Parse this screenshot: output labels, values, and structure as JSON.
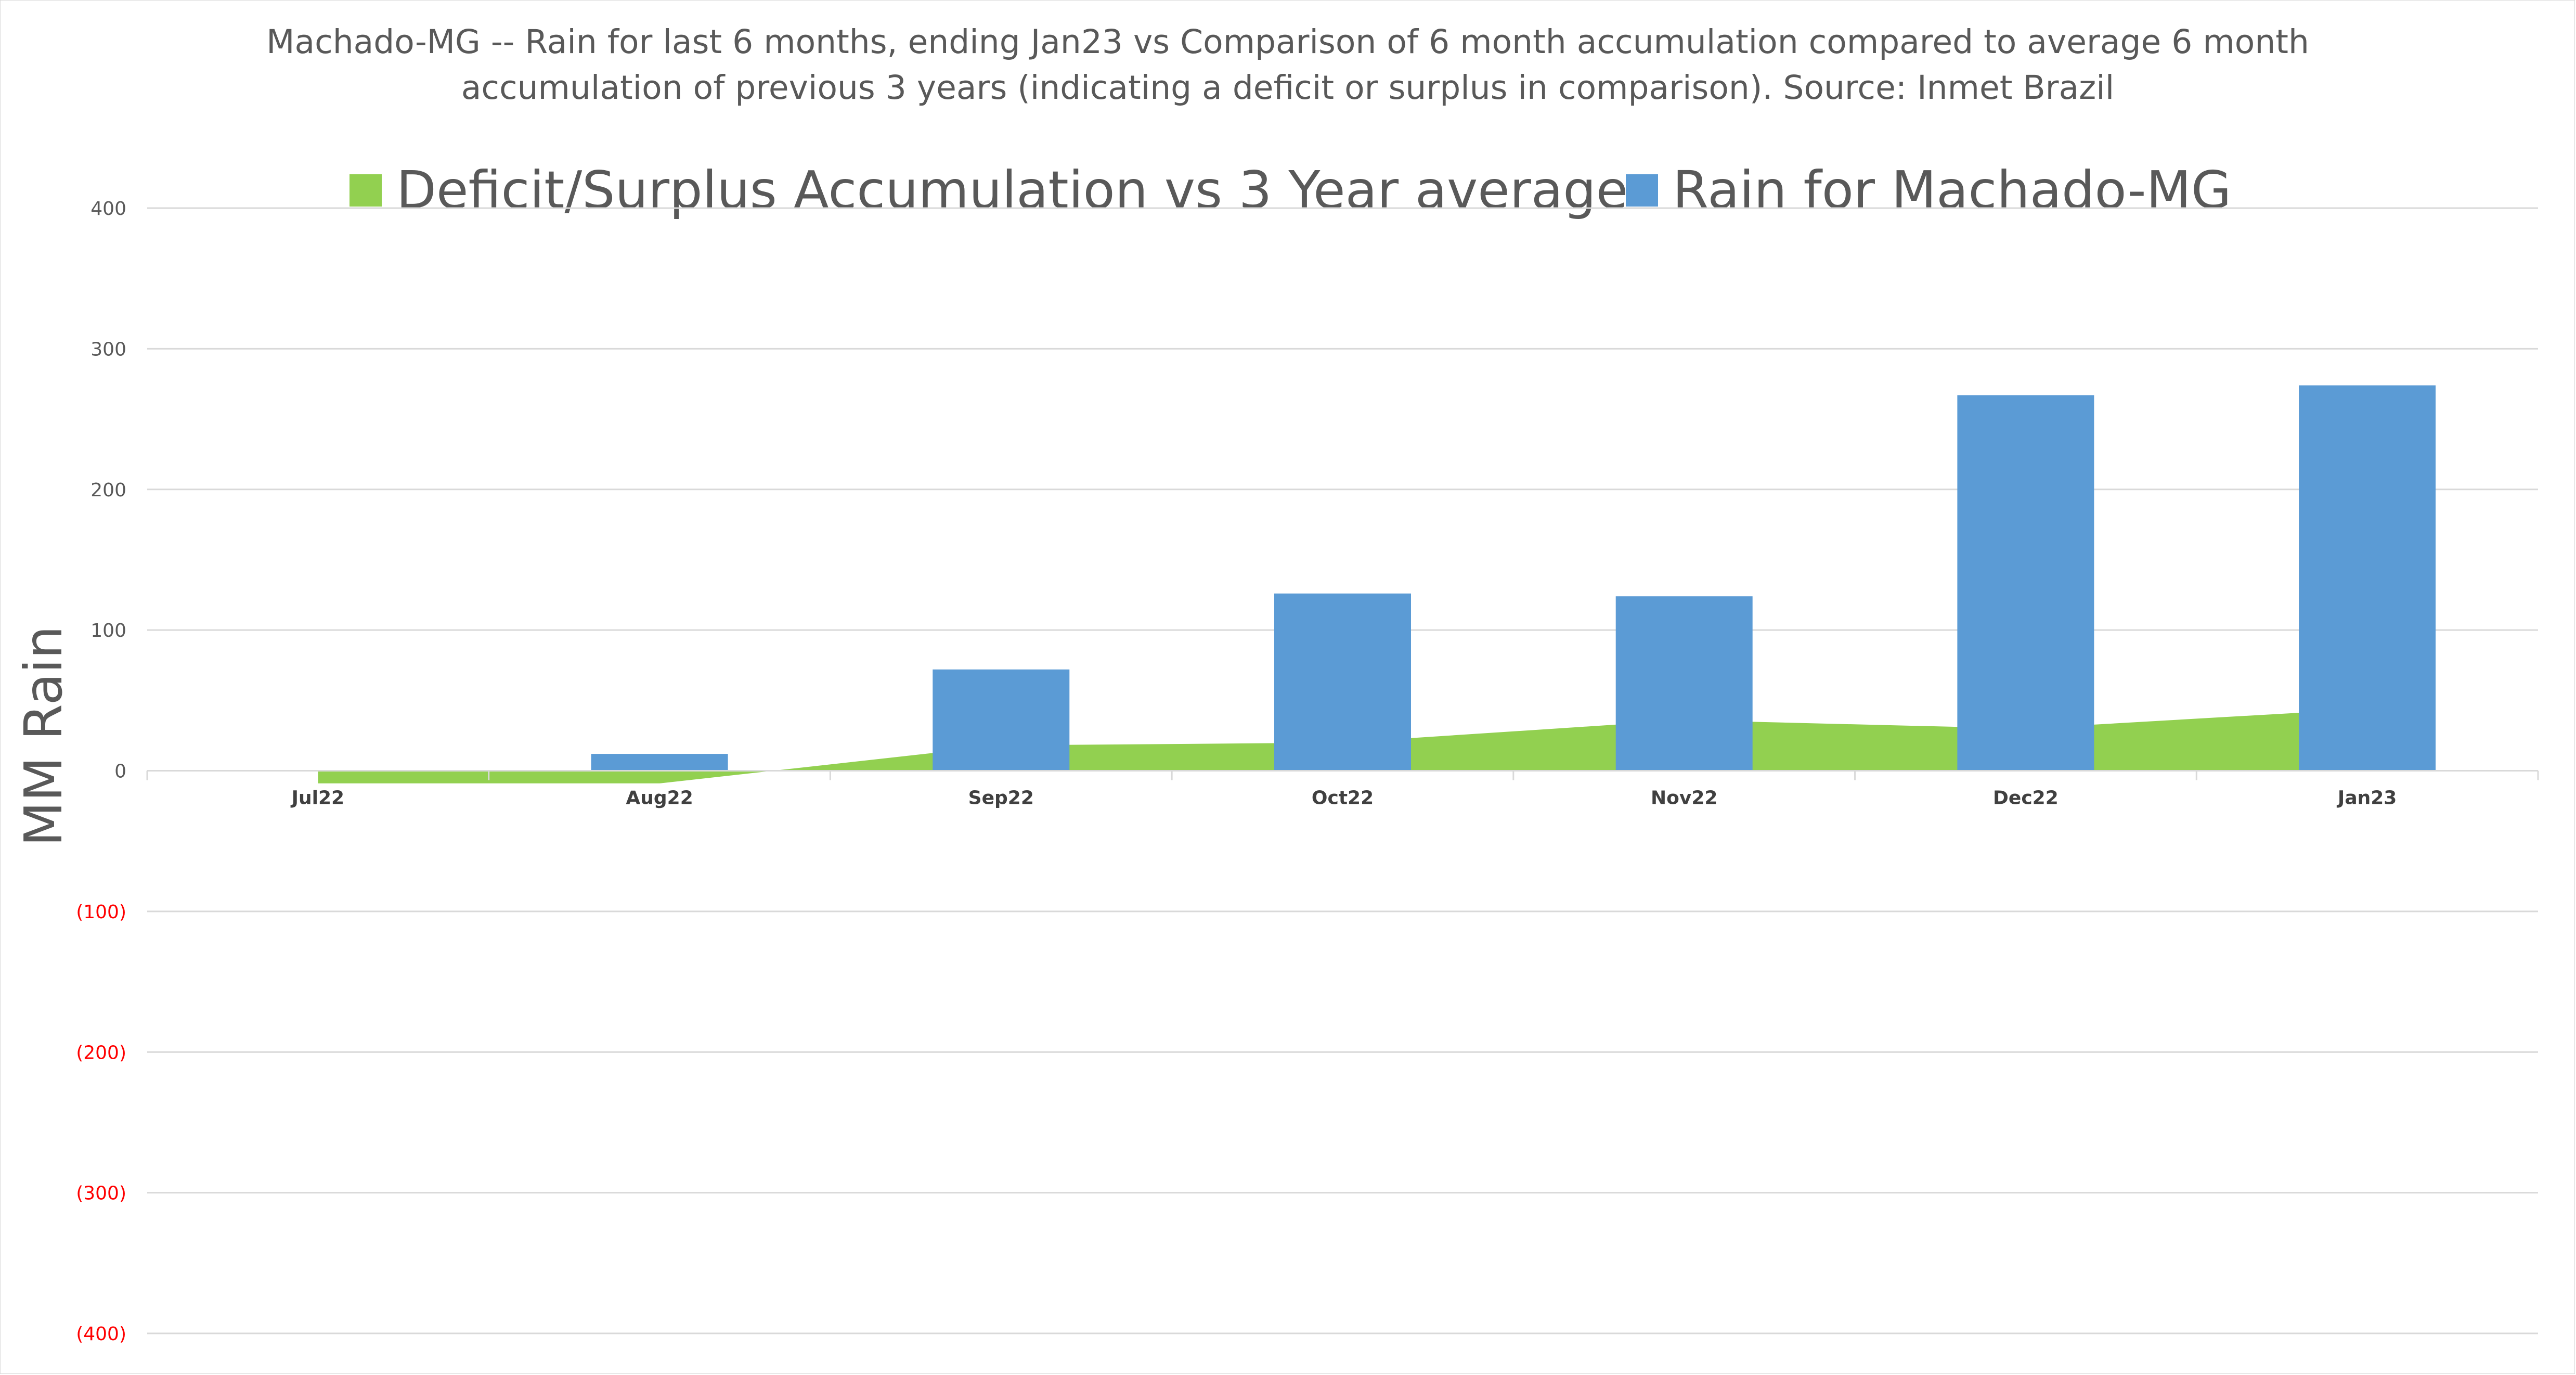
{
  "chart_data": {
    "type": "bar",
    "title_lines": [
      "Machado-MG -- Rain for last 6 months, ending Jan23  vs Comparison of 6 month accumulation compared to average 6 month",
      "accumulation of previous 3 years  (indicating a deficit or surplus in comparison). Source: Inmet Brazil"
    ],
    "ylabel": "MM Rain",
    "xlabel": "",
    "ylim": [
      -400,
      400
    ],
    "yticks": [
      400,
      300,
      200,
      100,
      0,
      -100,
      -200,
      -300,
      -400
    ],
    "ytick_labels": [
      "400",
      "300",
      "200",
      "100",
      "0",
      "(100)",
      "(200)",
      "(300)",
      "(400)"
    ],
    "categories": [
      "Jul22",
      "Aug22",
      "Sep22",
      "Oct22",
      "Nov22",
      "Dec22",
      "Jan23"
    ],
    "legend_position": "top",
    "grid": true,
    "series": [
      {
        "name": "Deficit/Surplus Accumulation vs 3 Year average",
        "type": "area",
        "color": "#92d050",
        "values": [
          -9,
          -9,
          18,
          20,
          36,
          30,
          44
        ]
      },
      {
        "name": "Rain for Machado-MG",
        "type": "bar",
        "color": "#5b9bd5",
        "values": [
          0,
          12,
          72,
          126,
          124,
          267,
          274
        ]
      }
    ],
    "negative_tick_color": "#ff0000",
    "positive_tick_color": "#595959"
  }
}
